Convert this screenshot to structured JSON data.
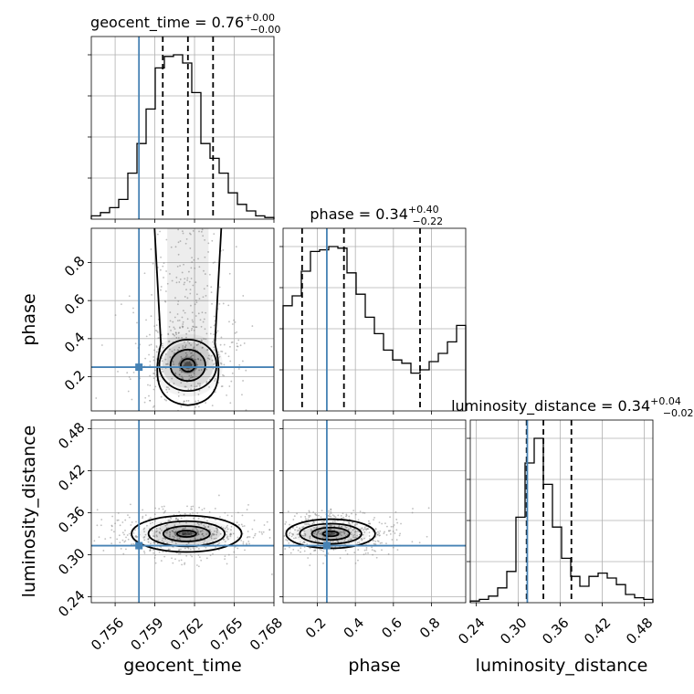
{
  "chart_data": {
    "type": "corner",
    "parameters": [
      "geocent_time",
      "phase",
      "luminosity_distance"
    ],
    "axis_labels": {
      "geocent_time": "geocent_time",
      "phase": "phase",
      "luminosity_distance": "luminosity_distance"
    },
    "titles": [
      {
        "param": "geocent_time",
        "prefix": "geocent_time = ",
        "median": "0.76",
        "plus": "+0.00",
        "minus": "−0.00"
      },
      {
        "param": "phase",
        "prefix": "phase = ",
        "median": "0.34",
        "plus": "+0.40",
        "minus": "−0.22"
      },
      {
        "param": "luminosity_distance",
        "prefix": "luminosity_distance = ",
        "median": "0.34",
        "plus": "+0.04",
        "minus": "−0.02"
      }
    ],
    "ranges": {
      "geocent_time": [
        0.7542,
        0.768
      ],
      "phase": [
        0.02,
        0.98
      ],
      "luminosity_distance": [
        0.2315,
        0.4925
      ]
    },
    "ticks": {
      "geocent_time": {
        "values": [
          0.756,
          0.759,
          0.762,
          0.765,
          0.768
        ],
        "labels": [
          "0.756",
          "0.759",
          "0.762",
          "0.765",
          "0.768"
        ]
      },
      "phase": {
        "values": [
          0.2,
          0.4,
          0.6,
          0.8
        ],
        "labels": [
          "0.2",
          "0.4",
          "0.6",
          "0.8"
        ]
      },
      "luminosity_distance": {
        "values": [
          0.24,
          0.3,
          0.36,
          0.42,
          0.48
        ],
        "labels": [
          "0.24",
          "0.30",
          "0.36",
          "0.42",
          "0.48"
        ]
      }
    },
    "truths": {
      "geocent_time": 0.7578,
      "phase": 0.25,
      "luminosity_distance": 0.313
    },
    "quantiles": {
      "geocent_time": [
        0.7596,
        0.7615,
        0.7634
      ],
      "phase": [
        0.12,
        0.34,
        0.74
      ],
      "luminosity_distance": [
        0.312,
        0.336,
        0.376
      ]
    },
    "histograms": {
      "geocent_time": [
        0.02,
        0.04,
        0.07,
        0.12,
        0.28,
        0.46,
        0.67,
        0.92,
        0.99,
        1.0,
        0.95,
        0.77,
        0.46,
        0.37,
        0.28,
        0.16,
        0.09,
        0.05,
        0.02,
        0.01
      ],
      "phase": [
        0.64,
        0.7,
        0.85,
        0.97,
        0.98,
        1.0,
        0.99,
        0.84,
        0.71,
        0.57,
        0.47,
        0.37,
        0.31,
        0.29,
        0.23,
        0.25,
        0.3,
        0.35,
        0.42,
        0.52
      ],
      "luminosity_distance": [
        0.01,
        0.02,
        0.04,
        0.09,
        0.19,
        0.52,
        0.85,
        1.0,
        0.72,
        0.46,
        0.27,
        0.16,
        0.1,
        0.16,
        0.18,
        0.15,
        0.11,
        0.05,
        0.03,
        0.02
      ]
    },
    "density_2d": [
      {
        "x": "geocent_time",
        "y": "phase",
        "center": [
          0.7615,
          0.26
        ],
        "spread": [
          0.0012,
          0.075
        ],
        "tail_to": 0.98
      },
      {
        "x": "geocent_time",
        "y": "luminosity_distance",
        "center": [
          0.7614,
          0.33
        ],
        "spread": [
          0.0016,
          0.01
        ],
        "tail_to": null
      },
      {
        "x": "phase",
        "y": "luminosity_distance",
        "center": [
          0.27,
          0.33
        ],
        "spread": [
          0.09,
          0.008
        ],
        "tail_to": null
      }
    ],
    "colors": {
      "truth": "#4682b4",
      "lines": "#000000",
      "scatter": "#808080",
      "grid": "#b0b0b0"
    },
    "grid": true
  }
}
